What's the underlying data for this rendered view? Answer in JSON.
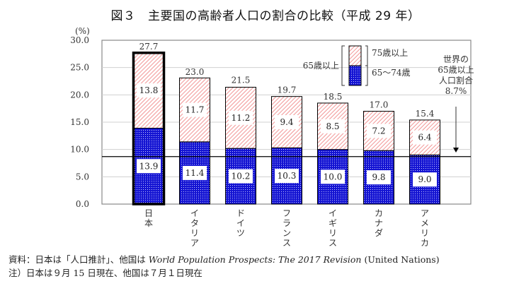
{
  "title": "図３　主要国の高齢者人口の割合の比較（平成 29 年）",
  "chart_data": {
    "type": "bar",
    "stacked": true,
    "title": "図３　主要国の高齢者人口の割合の比較（平成 29 年）",
    "ylabel": "(%)",
    "xlabel": "",
    "ylim": [
      0,
      30
    ],
    "yticks": [
      "0.0",
      "5.0",
      "10.0",
      "15.0",
      "20.0",
      "25.0",
      "30.0"
    ],
    "ytick_values": [
      0,
      5,
      10,
      15,
      20,
      25,
      30
    ],
    "grid": true,
    "categories": [
      "日本",
      "イタリア",
      "ドイツ",
      "フランス",
      "イギリス",
      "カナダ",
      "アメリカ"
    ],
    "series": [
      {
        "name": "65～74歳",
        "color": "#1a1ad6",
        "pattern": "dots",
        "values": [
          13.9,
          11.4,
          10.2,
          10.3,
          10.0,
          9.8,
          9.0
        ]
      },
      {
        "name": "75歳以上",
        "color": "#f08080",
        "pattern": "diagonal-hatch",
        "values": [
          13.8,
          11.7,
          11.2,
          9.4,
          8.5,
          7.2,
          6.4
        ]
      }
    ],
    "totals": [
      27.7,
      23.0,
      21.5,
      19.7,
      18.5,
      17.0,
      15.4
    ],
    "total_labels": [
      "27.7",
      "23.0",
      "21.5",
      "19.7",
      "18.5",
      "17.0",
      "15.4"
    ],
    "series_labels": [
      [
        "13.9",
        "11.4",
        "10.2",
        "10.3",
        "10.0",
        "9.8",
        "9.0"
      ],
      [
        "13.8",
        "11.7",
        "11.2",
        "9.4",
        "8.5",
        "7.2",
        "6.4"
      ]
    ],
    "highlighted_category": "日本",
    "legend": {
      "position": "top-right",
      "group_label": "65歳以上",
      "entries": [
        "75歳以上",
        "65～74歳"
      ]
    },
    "reference_line": {
      "value": 8.7,
      "annotation": [
        "世界の",
        "65歳以上",
        "人口割合",
        "8.7%"
      ]
    }
  },
  "notes": {
    "source_prefix": "資料：日本は「人口推計」、他国は ",
    "source_italic": "World Population Prospects: The 2017 Revision",
    "source_suffix": " (United Nations)",
    "note": "注）日本は９月 15 日現在、他国は７月１日現在"
  }
}
